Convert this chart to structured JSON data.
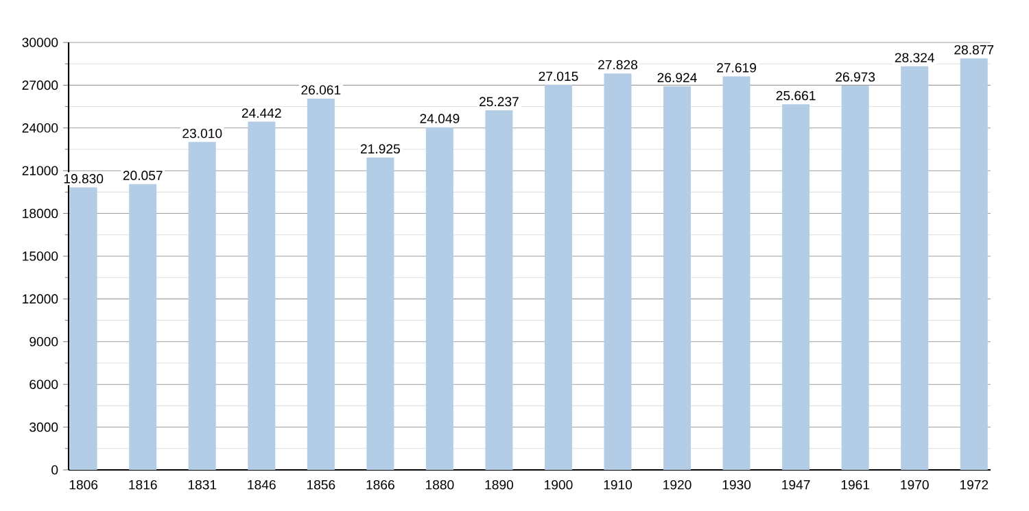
{
  "chart_data": {
    "type": "bar",
    "categories": [
      "1806",
      "1816",
      "1831",
      "1846",
      "1856",
      "1866",
      "1880",
      "1890",
      "1900",
      "1910",
      "1920",
      "1930",
      "1947",
      "1961",
      "1970",
      "1972"
    ],
    "values": [
      19830,
      20057,
      23010,
      24442,
      26061,
      21925,
      24049,
      25237,
      27015,
      27828,
      26924,
      27619,
      25661,
      26973,
      28324,
      28877
    ],
    "value_labels": [
      "19.830",
      "20.057",
      "23.010",
      "24.442",
      "26.061",
      "21.925",
      "24.049",
      "25.237",
      "27.015",
      "27.828",
      "26.924",
      "27.619",
      "25.661",
      "26.973",
      "28.324",
      "28.877"
    ],
    "color": "#b3cde6",
    "ylim": [
      0,
      30000
    ],
    "yticks": [
      0,
      3000,
      6000,
      9000,
      12000,
      15000,
      18000,
      21000,
      24000,
      27000,
      30000
    ],
    "grid": "y"
  }
}
